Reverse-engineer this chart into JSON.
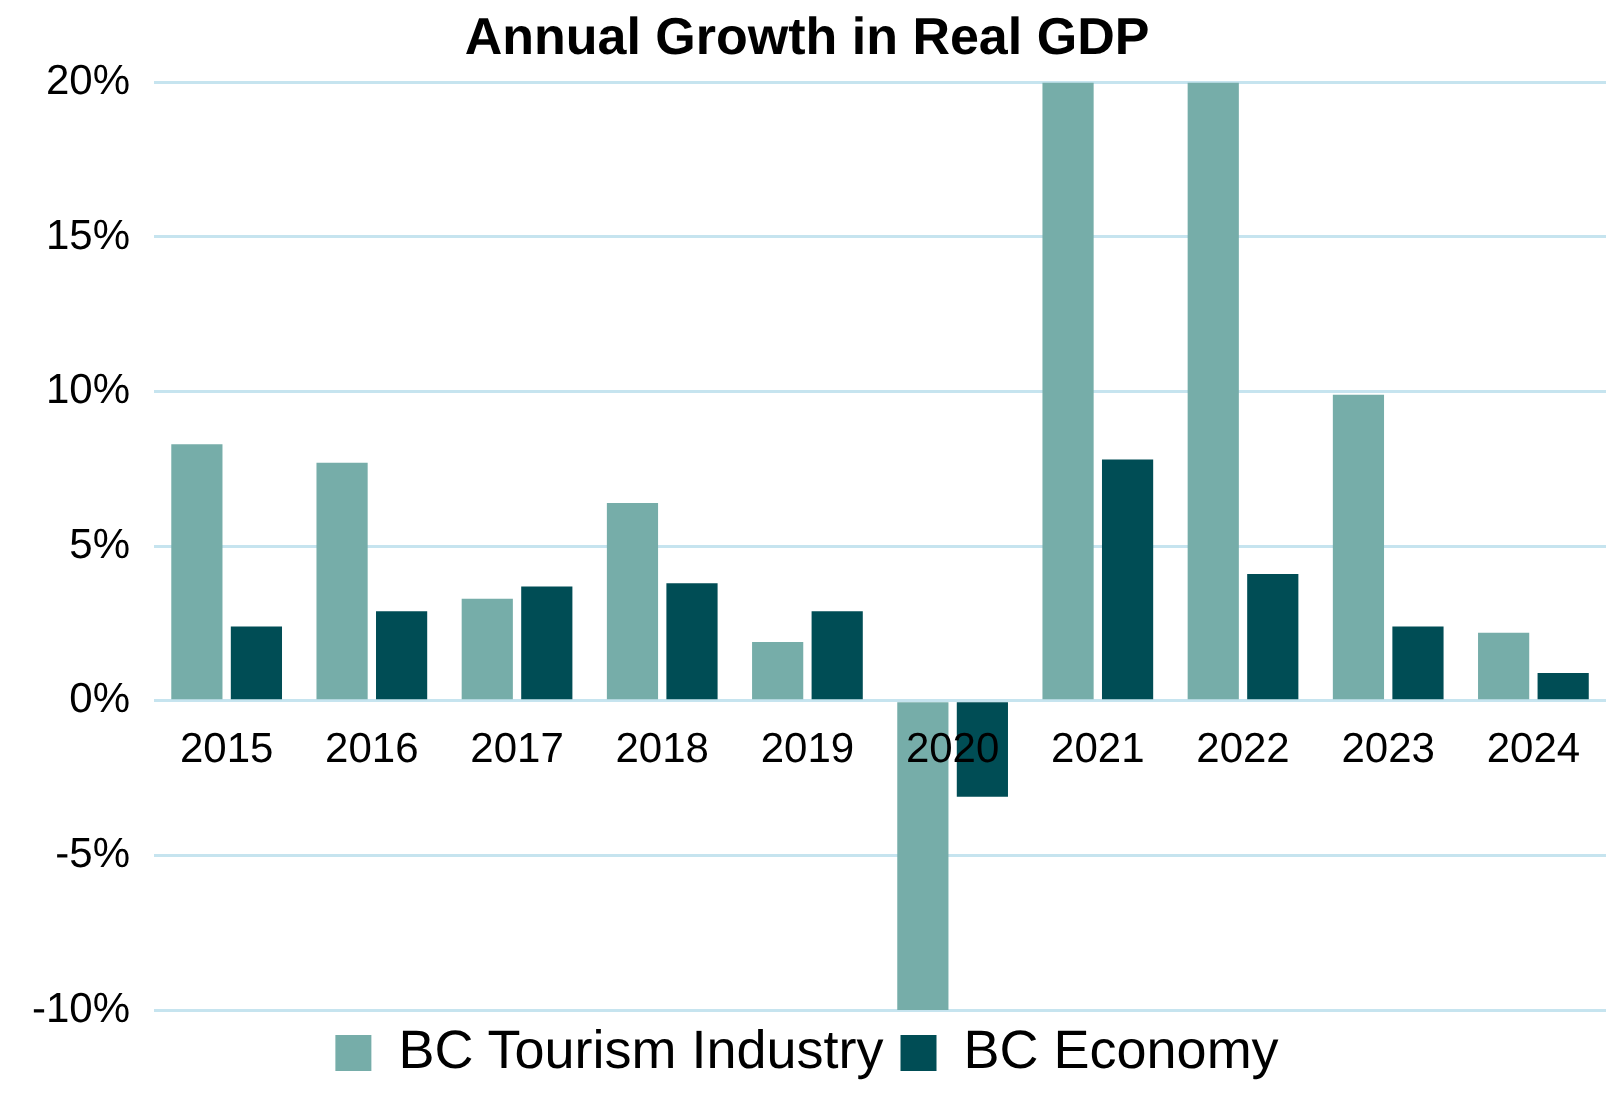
{
  "chart_data": {
    "type": "bar",
    "title": "Annual Growth in Real GDP",
    "categories": [
      "2015",
      "2016",
      "2017",
      "2018",
      "2019",
      "2020",
      "2021",
      "2022",
      "2023",
      "2024"
    ],
    "series": [
      {
        "name": "BC Tourism Industry",
        "color": "#76ada9",
        "values": [
          8.3,
          7.7,
          3.3,
          6.4,
          1.9,
          -10,
          20,
          20,
          9.9,
          2.2
        ]
      },
      {
        "name": "BC Economy",
        "color": "#004d55",
        "values": [
          2.4,
          2.9,
          3.7,
          3.8,
          2.9,
          -3.1,
          7.8,
          4.1,
          2.4,
          0.9
        ]
      }
    ],
    "ylim": [
      -10,
      20
    ],
    "yticks": [
      {
        "value": -10,
        "label": "-10%"
      },
      {
        "value": -5,
        "label": "-5%"
      },
      {
        "value": 0,
        "label": "0%"
      },
      {
        "value": 5,
        "label": "5%"
      },
      {
        "value": 10,
        "label": "10%"
      },
      {
        "value": 15,
        "label": "15%"
      },
      {
        "value": 20,
        "label": "20%"
      }
    ],
    "grid": "y",
    "legend": "bottom"
  }
}
